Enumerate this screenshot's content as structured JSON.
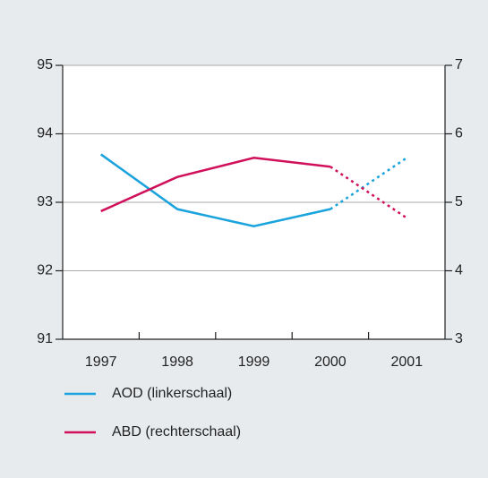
{
  "chart_data": {
    "type": "line",
    "categories": [
      "1997",
      "1998",
      "1999",
      "2000",
      "2001"
    ],
    "series": [
      {
        "name": "AOD (linkerschaal)",
        "color": "#1aa3dc",
        "values": [
          93.7,
          92.9,
          92.65,
          92.9,
          93.65
        ]
      },
      {
        "name": "ABD (rechterschaal)",
        "color": "#d0105a",
        "axis": "y2",
        "values": [
          4.87,
          5.37,
          5.65,
          5.52,
          4.77
        ]
      }
    ],
    "dash_from": "2000",
    "ylim": [
      91,
      95
    ],
    "yticks": [
      91,
      92,
      93,
      94,
      95
    ],
    "y2lim": [
      3,
      7
    ],
    "y2ticks": [
      3,
      4,
      5,
      6,
      7
    ],
    "grid": true
  }
}
